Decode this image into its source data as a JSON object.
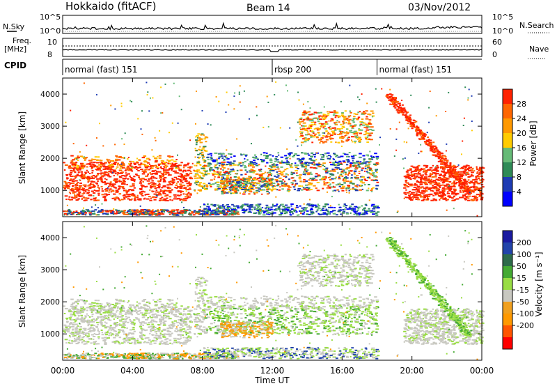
{
  "header": {
    "station": "Hokkaido (fitACF)",
    "beam": "Beam 14",
    "date": "03/Nov/2012"
  },
  "side_labels": {
    "nsky": "N.Sky",
    "freq": "Freq.",
    "freq_unit": "[MHz]",
    "cpid": "CPID",
    "nsearch": "N.Search",
    "nave": "Nave"
  },
  "aux_ticks": {
    "noise_left": [
      "10^5",
      "10^0"
    ],
    "noise_right": [
      "10^5",
      "10^0"
    ],
    "freq_left": [
      "10",
      "8"
    ],
    "freq_right": [
      "60",
      "0"
    ]
  },
  "cpid_segments": [
    {
      "label": "normal (fast) 151",
      "start_h": 0,
      "end_h": 12
    },
    {
      "label": "rbsp 200",
      "start_h": 12,
      "end_h": 18
    },
    {
      "label": "normal (fast) 151",
      "start_h": 18,
      "end_h": 24
    }
  ],
  "colors": {
    "power": [
      "#0000ff",
      "#1e3cb4",
      "#2e8b57",
      "#66bb77",
      "#ffcc00",
      "#ff9900",
      "#ff6600",
      "#ff2200"
    ],
    "velocity": [
      "#ff0000",
      "#ff5500",
      "#ff9900",
      "#f0a020",
      "#c8c8c0",
      "#99dd44",
      "#44aa33",
      "#2d6b4a",
      "#2244aa",
      "#1a1aa0"
    ]
  },
  "chart_data": [
    {
      "type": "heatmap",
      "panel": "power",
      "xlabel": "",
      "ylabel": "Slant Range [km]",
      "ylim": [
        180,
        4500
      ],
      "xlim_hours": [
        0,
        24
      ],
      "yticks": [
        "1000",
        "2000",
        "3000",
        "4000"
      ],
      "colorbar": {
        "label": "Power [dB]",
        "ticks": [
          "28",
          "24",
          "20",
          "16",
          "12",
          "8",
          "4"
        ]
      }
    },
    {
      "type": "heatmap",
      "panel": "velocity",
      "xlabel": "Time UT",
      "ylabel": "Slant Range [km]",
      "ylim": [
        180,
        4500
      ],
      "xlim_hours": [
        0,
        24
      ],
      "xticks": [
        "00:00",
        "04:00",
        "08:00",
        "12:00",
        "16:00",
        "20:00",
        "00:00"
      ],
      "yticks": [
        "1000",
        "2000",
        "3000",
        "4000"
      ],
      "colorbar": {
        "label": "Velocity [m s⁻¹]",
        "ticks": [
          "200",
          "100",
          "50",
          "15",
          "-15",
          "-50",
          "-100",
          "-200"
        ]
      }
    }
  ]
}
